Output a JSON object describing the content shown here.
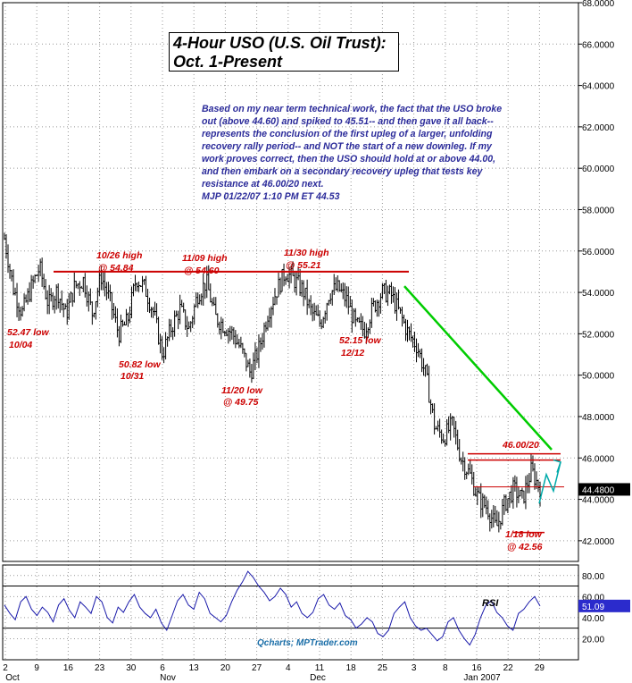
{
  "title_line1": "4-Hour USO (U.S. Oil Trust):",
  "title_line2": "Oct. 1-Present",
  "commentary": "Based on my near term technical work, the fact that the USO broke\nout (above 44.60) and spiked to 45.51-- and then gave it all back--\nrepresents the conclusion of the first upleg of a larger, unfolding\nrecovery rally period-- and NOT the start of a new downleg. If my\nwork proves correct, then the USO should hold at or above 44.00,\nand then embark on a secondary recovery upleg that tests key\nresistance at 46.00/20 next.\nMJP  01/22/07 1:10 PM ET  44.53",
  "watermark": "Qcharts; MPTrader.com",
  "colors": {
    "bar": "#000000",
    "annotation": "#cc0000",
    "trendline": "#00cc00",
    "arrow": "#00aaaa",
    "rsi": "#1a1aaa",
    "text": "#2b2b9a"
  },
  "chart_data": {
    "type": "ohlc",
    "title": "4-Hour USO (U.S. Oil Trust): Oct. 1-Present",
    "price_axis": {
      "min": 41,
      "max": 68,
      "ticks": [
        "68.0000",
        "66.0000",
        "64.0000",
        "62.0000",
        "60.0000",
        "58.0000",
        "56.0000",
        "54.0000",
        "52.0000",
        "50.0000",
        "48.0000",
        "46.0000",
        "44.0000",
        "42.0000"
      ],
      "last_price_label": "44.4800",
      "last_price": 44.48
    },
    "x_axis": {
      "ticks": [
        "2",
        "9",
        "16",
        "23",
        "30",
        "6",
        "13",
        "20",
        "27",
        "4",
        "11",
        "18",
        "25",
        "3",
        "8",
        "16",
        "22",
        "29"
      ],
      "month_labels": [
        "Oct",
        "Nov",
        "Dec",
        "Jan 2007"
      ]
    },
    "close_path": [
      56.6,
      54.2,
      53.0,
      54.2,
      55.2,
      53.4,
      54.1,
      52.9,
      54.3,
      54.6,
      53.0,
      54.8,
      53.6,
      52.0,
      52.6,
      54.7,
      54.2,
      53.0,
      51.0,
      52.3,
      53.2,
      52.2,
      53.9,
      54.5,
      52.8,
      52.4,
      52.0,
      51.2,
      50.1,
      51.3,
      53.0,
      54.1,
      55.0,
      54.6,
      54.1,
      53.0,
      52.5,
      54.0,
      54.2,
      53.6,
      52.4,
      52.2,
      53.3,
      54.0,
      53.9,
      53.0,
      52.0,
      51.4,
      50.0,
      47.5,
      47.0,
      47.6,
      46.0,
      45.2,
      44.0,
      43.6,
      42.6,
      43.8,
      44.5,
      44.0,
      45.4,
      44.5
    ],
    "annotations": [
      {
        "text": "10/26 high",
        "sub": "@ 54.84",
        "price": 54.84
      },
      {
        "text": "11/09 high",
        "sub": "@ 54.60",
        "price": 54.6
      },
      {
        "text": "11/30 high",
        "sub": "@ 55.21",
        "price": 55.21
      },
      {
        "text": "52.47 low",
        "sub": "10/04",
        "price": 52.47
      },
      {
        "text": "50.82 low",
        "sub": "10/31",
        "price": 50.82
      },
      {
        "text": "11/20 low",
        "sub": "@ 49.75",
        "price": 49.75
      },
      {
        "text": "52.15 low",
        "sub": "12/12",
        "price": 52.15
      },
      {
        "text": "46.00/20",
        "sub": "",
        "price": 46.0
      },
      {
        "text": "1/18 low",
        "sub": "@ 42.56",
        "price": 42.56
      }
    ],
    "resistance_lines": [
      55.0,
      46.2,
      45.9,
      44.6
    ],
    "rsi": {
      "label": "RSI",
      "axis_ticks": [
        "80.00",
        "60.00",
        "40.00",
        "20.00"
      ],
      "last_value_label": "51.09",
      "last_value": 51.09,
      "levels": [
        70,
        30
      ],
      "path": [
        52,
        44,
        38,
        55,
        60,
        48,
        42,
        50,
        45,
        36,
        52,
        58,
        47,
        40,
        55,
        50,
        44,
        60,
        55,
        40,
        35,
        50,
        45,
        55,
        62,
        50,
        44,
        40,
        48,
        35,
        28,
        42,
        56,
        62,
        52,
        48,
        64,
        58,
        44,
        40,
        36,
        42,
        55,
        66,
        74,
        84,
        78,
        70,
        64,
        56,
        60,
        68,
        62,
        50,
        55,
        44,
        40,
        45,
        58,
        62,
        52,
        48,
        54,
        42,
        38,
        30,
        34,
        40,
        36,
        25,
        22,
        28,
        44,
        50,
        55,
        40,
        32,
        28,
        30,
        24,
        18,
        22,
        36,
        40,
        28,
        20,
        14,
        24,
        40,
        52,
        56,
        45,
        40,
        32,
        28,
        44,
        48,
        55,
        60,
        51
      ]
    }
  }
}
